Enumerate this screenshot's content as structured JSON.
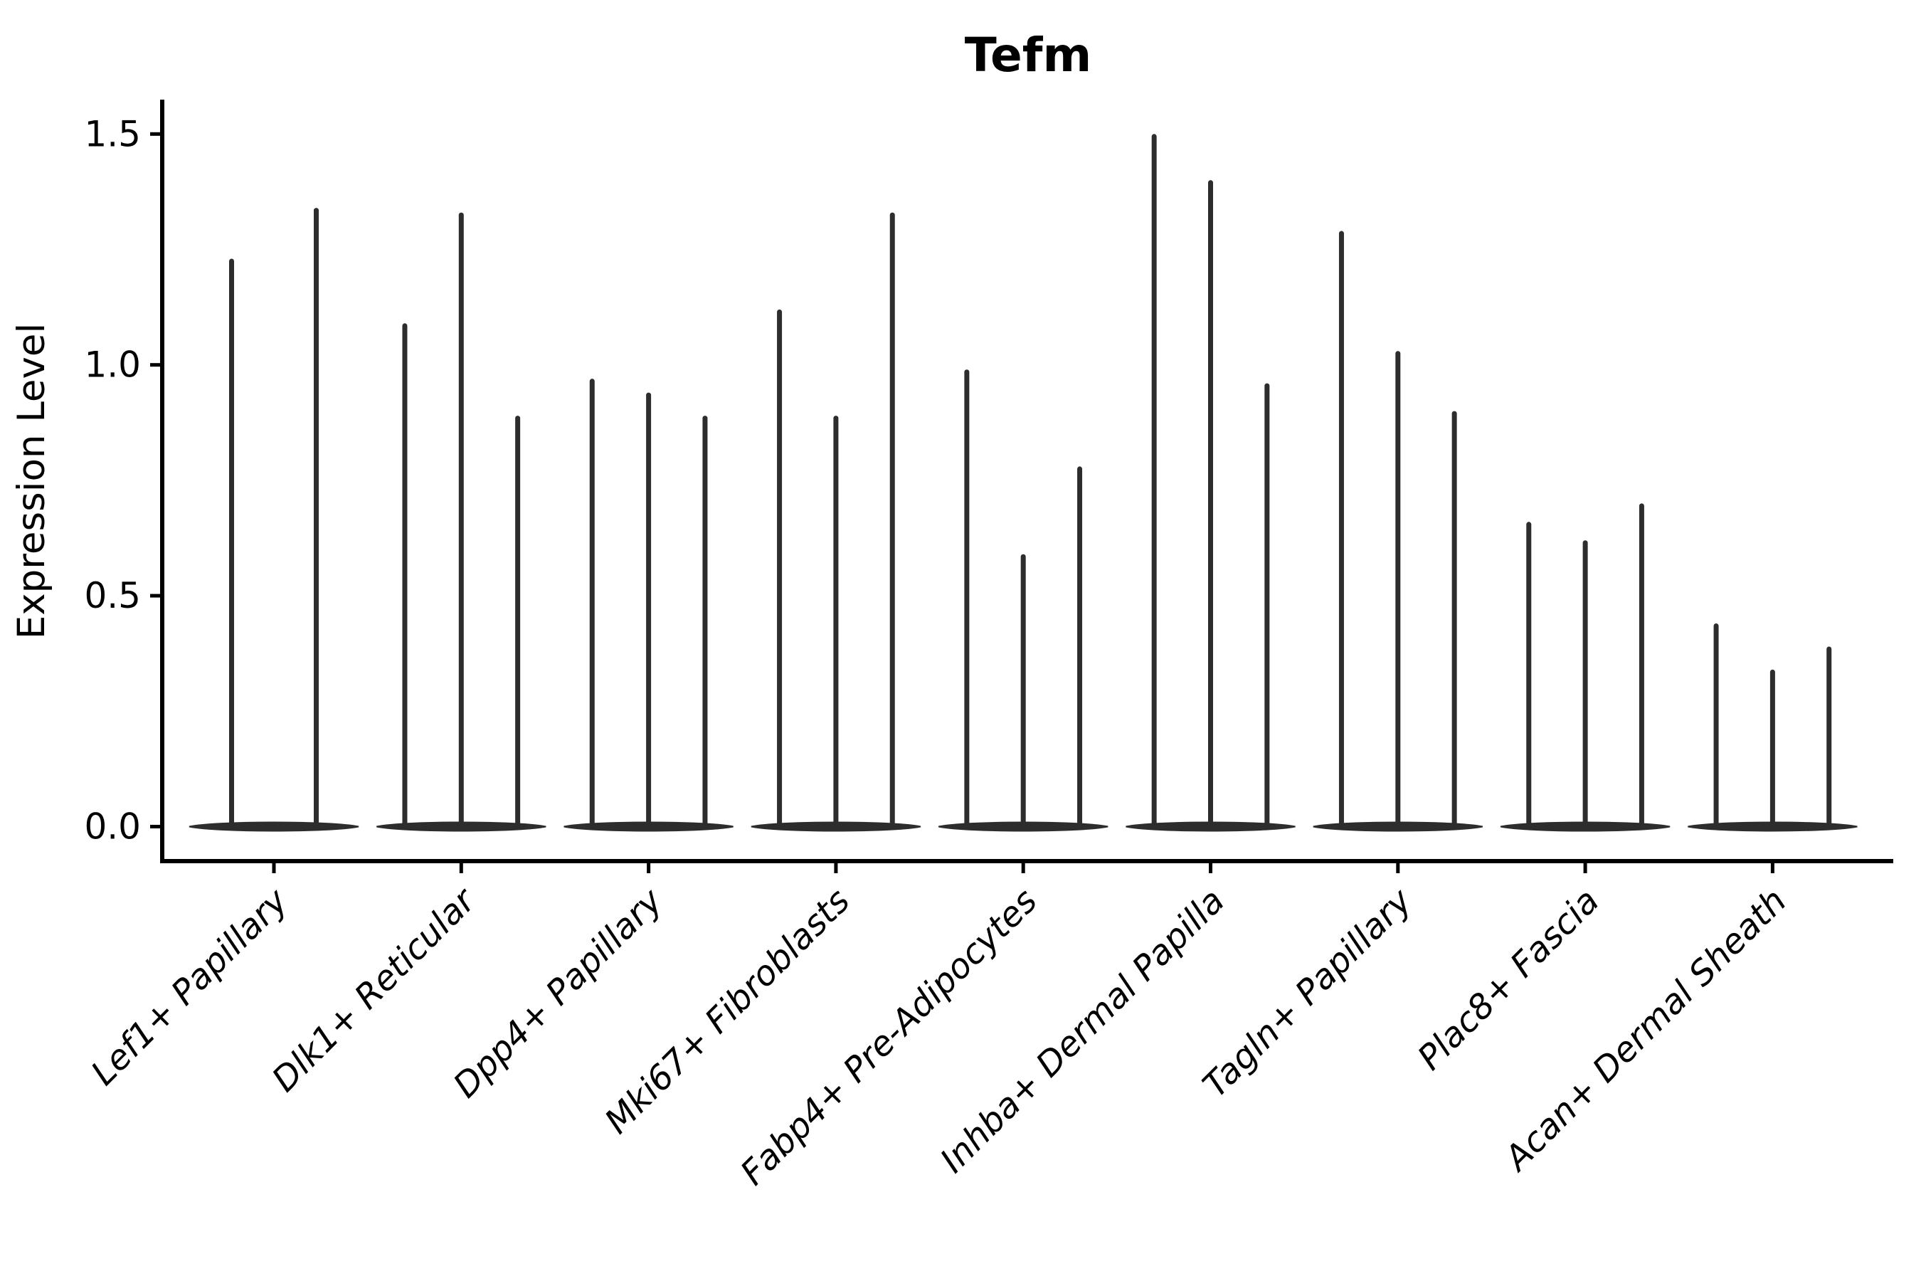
{
  "title": "Tefm",
  "y_axis": {
    "label": "Expression Level",
    "tick_labels": [
      "0.0",
      "0.5",
      "1.0",
      "1.5"
    ],
    "tick_values": [
      0.0,
      0.5,
      1.0,
      1.5
    ]
  },
  "colors": {
    "violin": "#2d2d2d",
    "axis": "#000000",
    "background": "#ffffff"
  },
  "chart_data": {
    "type": "violin",
    "title": "Tefm",
    "xlabel": "",
    "ylabel": "Expression Level",
    "ylim": [
      0,
      1.57
    ],
    "grid": false,
    "legend_position": "none",
    "description": "Stacked-thin violin plot; each category shows 2-3 narrow violins whose bulk sits at expression 0 with a thin spike reaching the maximum expression value.",
    "baseline_bulk_value": 0,
    "categories": [
      "Lef1+ Papillary",
      "Dlk1+ Reticular",
      "Dpp4+ Papillary",
      "Mki67+ Fibroblasts",
      "Fabp4+ Pre-Adipocytes",
      "Inhba+ Dermal Papilla",
      "Tagln+ Papillary",
      "Plac8+ Fascia",
      "Acan+ Dermal Sheath"
    ],
    "violins": [
      {
        "category": "Lef1+ Papillary",
        "max_expression": [
          1.23,
          1.34
        ]
      },
      {
        "category": "Dlk1+ Reticular",
        "max_expression": [
          1.09,
          1.33,
          0.89
        ]
      },
      {
        "category": "Dpp4+ Papillary",
        "max_expression": [
          0.97,
          0.94,
          0.89
        ]
      },
      {
        "category": "Mki67+ Fibroblasts",
        "max_expression": [
          1.12,
          0.89,
          1.33
        ]
      },
      {
        "category": "Fabp4+ Pre-Adipocytes",
        "max_expression": [
          0.99,
          0.59,
          0.78
        ]
      },
      {
        "category": "Inhba+ Dermal Papilla",
        "max_expression": [
          1.5,
          1.4,
          0.96
        ]
      },
      {
        "category": "Tagln+ Papillary",
        "max_expression": [
          1.29,
          1.03,
          0.9
        ]
      },
      {
        "category": "Plac8+ Fascia",
        "max_expression": [
          0.66,
          0.62,
          0.7
        ]
      },
      {
        "category": "Acan+ Dermal Sheath",
        "max_expression": [
          0.44,
          0.34,
          0.39
        ]
      }
    ]
  }
}
